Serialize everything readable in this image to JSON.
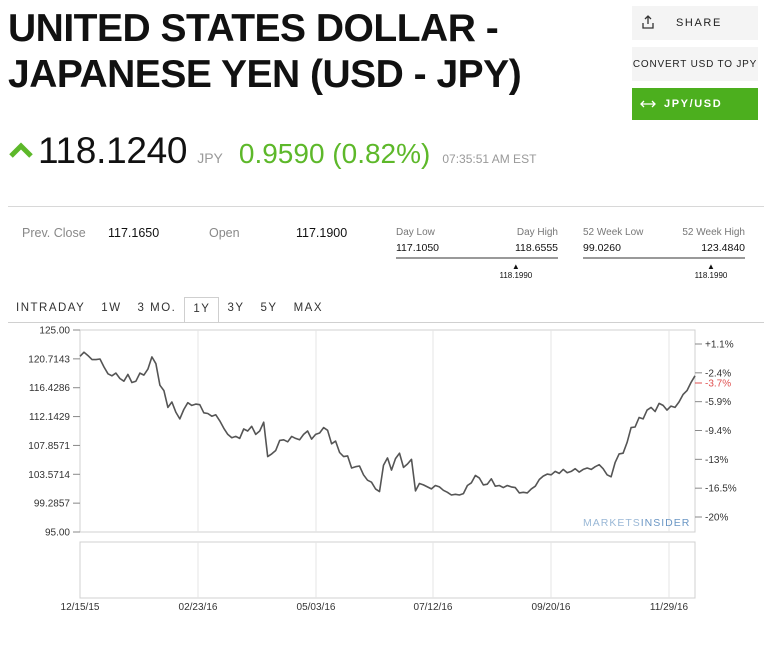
{
  "page": {
    "title": "UNITED STATES DOLLAR - JAPANESE YEN (USD - JPY)",
    "actions": {
      "share_label": "SHARE",
      "convert_label": "CONVERT USD TO JPY",
      "pair_label": "JPY/USD",
      "share_icon": "share-icon",
      "pair_icon": "swap-arrows-icon"
    },
    "quote": {
      "price": "118.1240",
      "currency": "JPY",
      "change": "0.9590 (0.82%)",
      "time": "07:35:51 AM EST",
      "direction_icon": "arrow-up-icon",
      "up_color": "#5db82a"
    },
    "stats": {
      "prev_close_label": "Prev. Close",
      "prev_close": "117.1650",
      "open_label": "Open",
      "open": "117.1900",
      "day_low_label": "Day Low",
      "day_low": "117.1050",
      "day_high_label": "Day High",
      "day_high": "118.6555",
      "day_marker": "118.1990",
      "week52_low_label": "52 Week Low",
      "week52_low": "99.0260",
      "week52_high_label": "52 Week High",
      "week52_high": "123.4840",
      "week52_marker": "118.1990"
    },
    "tabs": [
      "INTRADAY",
      "1W",
      "3 MO.",
      "1Y",
      "3Y",
      "5Y",
      "MAX"
    ],
    "active_tab": "1Y",
    "watermark": {
      "part1": "MARKETS",
      "part2": "INSIDER"
    }
  },
  "chart_data": {
    "type": "line",
    "series": [
      {
        "values": [
          121.1,
          121.7,
          121.2,
          120.6,
          120.6,
          120.7,
          119.5,
          118.5,
          118.2,
          118.6,
          117.8,
          117.4,
          118.4,
          117.2,
          117.4,
          118.6,
          118.3,
          119.2,
          121.0,
          120.0,
          116.8,
          116.0,
          113.5,
          114.3,
          112.8,
          111.8,
          113.2,
          114.2,
          113.8,
          114.0,
          113.9,
          112.7,
          112.6,
          112.2,
          112.4,
          111.5,
          110.4,
          109.5,
          109.0,
          109.2,
          108.9,
          110.3,
          110.0,
          110.7,
          109.5,
          110.0,
          111.3,
          106.2,
          106.6,
          107.1,
          108.6,
          108.7,
          108.4,
          109.2,
          108.9,
          108.7,
          109.5,
          110.0,
          108.8,
          109.5,
          109.7,
          110.5,
          110.1,
          108.1,
          108.5,
          106.8,
          106.2,
          106.3,
          104.5,
          104.7,
          104.8,
          103.5,
          102.7,
          102.4,
          101.4,
          101.0,
          104.9,
          106.0,
          104.2,
          105.9,
          106.7,
          104.6,
          105.1,
          105.8,
          101.1,
          102.2,
          102.0,
          101.7,
          101.4,
          101.9,
          101.7,
          101.2,
          100.9,
          100.5,
          100.6,
          100.5,
          100.7,
          101.9,
          102.3,
          103.4,
          103.0,
          102.0,
          102.1,
          102.9,
          101.8,
          101.9,
          101.6,
          101.9,
          101.7,
          101.6,
          100.8,
          100.9,
          100.8,
          101.4,
          101.8,
          102.8,
          103.3,
          103.6,
          103.5,
          104.0,
          103.7,
          104.3,
          103.8,
          104.0,
          104.4,
          103.9,
          104.3,
          104.5,
          104.3,
          104.7,
          105.0,
          104.4,
          103.5,
          103.2,
          105.3,
          106.6,
          106.7,
          108.3,
          110.5,
          110.6,
          112.0,
          111.8,
          113.1,
          113.5,
          112.9,
          114.1,
          113.8,
          113.1,
          113.7,
          113.5,
          114.3,
          115.4,
          116.0,
          117.2,
          118.2
        ]
      }
    ],
    "x_tick_labels": [
      "12/15/15",
      "02/23/16",
      "05/03/16",
      "07/12/16",
      "09/20/16",
      "11/29/16"
    ],
    "y_tick_labels": [
      "125.00",
      "120.7143",
      "116.4286",
      "112.1429",
      "107.8571",
      "103.5714",
      "99.2857",
      "95.00"
    ],
    "y_right_tick_labels": [
      "+1.1%",
      "-2.4%",
      "-5.9%",
      "-9.4%",
      "-13%",
      "-16.5%",
      "-20%"
    ],
    "current_marker_label": "-3.7%",
    "ylim": [
      95,
      125
    ],
    "line_color": "#555555",
    "marker_color": "#e05050",
    "grid": true
  }
}
